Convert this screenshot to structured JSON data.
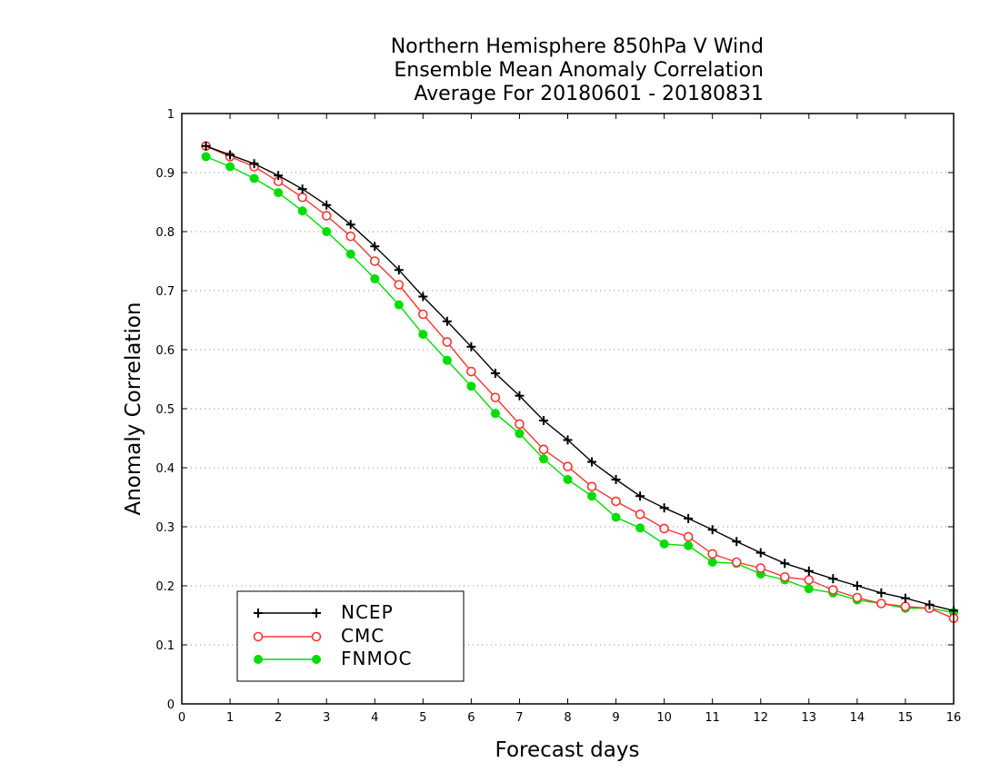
{
  "chart_data": {
    "type": "line",
    "title_lines": [
      "Northern Hemisphere 850hPa V Wind",
      "Ensemble Mean Anomaly Correlation",
      "Average For 20180601 - 20180831"
    ],
    "xlabel": "Forecast days",
    "ylabel": "Anomaly Correlation",
    "xlim": [
      0,
      16
    ],
    "ylim": [
      0,
      1
    ],
    "x_ticks": [
      0,
      1,
      2,
      3,
      4,
      5,
      6,
      7,
      8,
      9,
      10,
      11,
      12,
      13,
      14,
      15,
      16
    ],
    "y_ticks": [
      0,
      0.1,
      0.2,
      0.3,
      0.4,
      0.5,
      0.6,
      0.7,
      0.8,
      0.9,
      1
    ],
    "y_tick_labels": [
      "0",
      "0.1",
      "0.2",
      "0.3",
      "0.4",
      "0.5",
      "0.6",
      "0.7",
      "0.8",
      "0.9",
      "1"
    ],
    "grid": "horizontal dotted",
    "legend_position": "bottom-left",
    "x": [
      0.5,
      1,
      1.5,
      2,
      2.5,
      3,
      3.5,
      4,
      4.5,
      5,
      5.5,
      6,
      6.5,
      7,
      7.5,
      8,
      8.5,
      9,
      9.5,
      10,
      10.5,
      11,
      11.5,
      12,
      12.5,
      13,
      13.5,
      14,
      14.5,
      15,
      15.5,
      16
    ],
    "series": [
      {
        "name": "NCEP",
        "color": "#000000",
        "marker": "plus",
        "values": [
          0.945,
          0.93,
          0.915,
          0.895,
          0.872,
          0.845,
          0.812,
          0.775,
          0.735,
          0.69,
          0.648,
          0.605,
          0.56,
          0.522,
          0.48,
          0.447,
          0.41,
          0.38,
          0.352,
          0.332,
          0.314,
          0.295,
          0.275,
          0.256,
          0.238,
          0.225,
          0.212,
          0.2,
          0.188,
          0.179,
          0.168,
          0.158
        ]
      },
      {
        "name": "CMC",
        "color": "#ff3333",
        "marker": "open-circle",
        "values": [
          0.945,
          0.927,
          0.91,
          0.885,
          0.858,
          0.827,
          0.792,
          0.75,
          0.71,
          0.66,
          0.613,
          0.563,
          0.519,
          0.474,
          0.431,
          0.402,
          0.368,
          0.343,
          0.321,
          0.297,
          0.283,
          0.254,
          0.24,
          0.23,
          0.215,
          0.21,
          0.193,
          0.18,
          0.17,
          0.165,
          0.162,
          0.145
        ]
      },
      {
        "name": "FNMOC",
        "color": "#00dd00",
        "marker": "filled-circle",
        "values": [
          0.927,
          0.91,
          0.89,
          0.866,
          0.835,
          0.8,
          0.762,
          0.72,
          0.676,
          0.626,
          0.582,
          0.538,
          0.492,
          0.458,
          0.415,
          0.38,
          0.352,
          0.316,
          0.298,
          0.271,
          0.268,
          0.24,
          0.238,
          0.22,
          0.21,
          0.195,
          0.188,
          0.176,
          0.17,
          0.162,
          0.162,
          0.155
        ]
      }
    ]
  }
}
